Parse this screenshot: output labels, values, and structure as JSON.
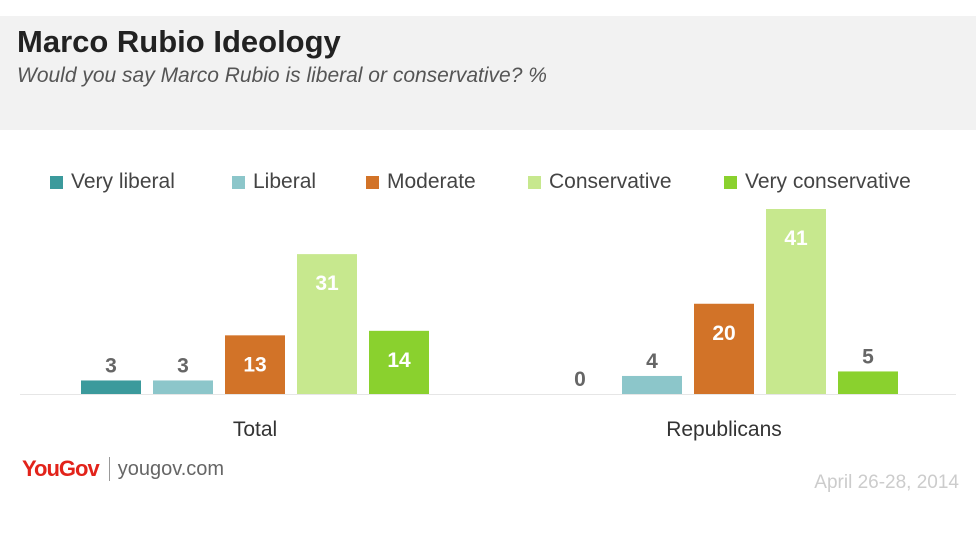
{
  "header": {
    "title": "Marco Rubio Ideology",
    "subtitle": "Would you say Marco Rubio is liberal or conservative? %"
  },
  "footer": {
    "logo_you": "You",
    "logo_gov": "Gov",
    "logo_url": "yougov.com",
    "date": "April 26-28, 2014"
  },
  "chart_data": {
    "type": "bar",
    "title": "Marco Rubio Ideology",
    "subtitle": "Would you say Marco Rubio is liberal or conservative? %",
    "categories": [
      "Total",
      "Republicans"
    ],
    "legend_position": "top",
    "grid": false,
    "ylim": [
      0,
      45
    ],
    "series": [
      {
        "name": "Very liberal",
        "color": "#3b9a9c",
        "values": [
          3,
          0
        ]
      },
      {
        "name": "Liberal",
        "color": "#8cc6ca",
        "values": [
          3,
          4
        ]
      },
      {
        "name": "Moderate",
        "color": "#d27328",
        "values": [
          13,
          20
        ]
      },
      {
        "name": "Conservative",
        "color": "#c7e88e",
        "values": [
          31,
          41
        ]
      },
      {
        "name": "Very conservative",
        "color": "#8ad12e",
        "values": [
          14,
          5
        ]
      }
    ]
  }
}
